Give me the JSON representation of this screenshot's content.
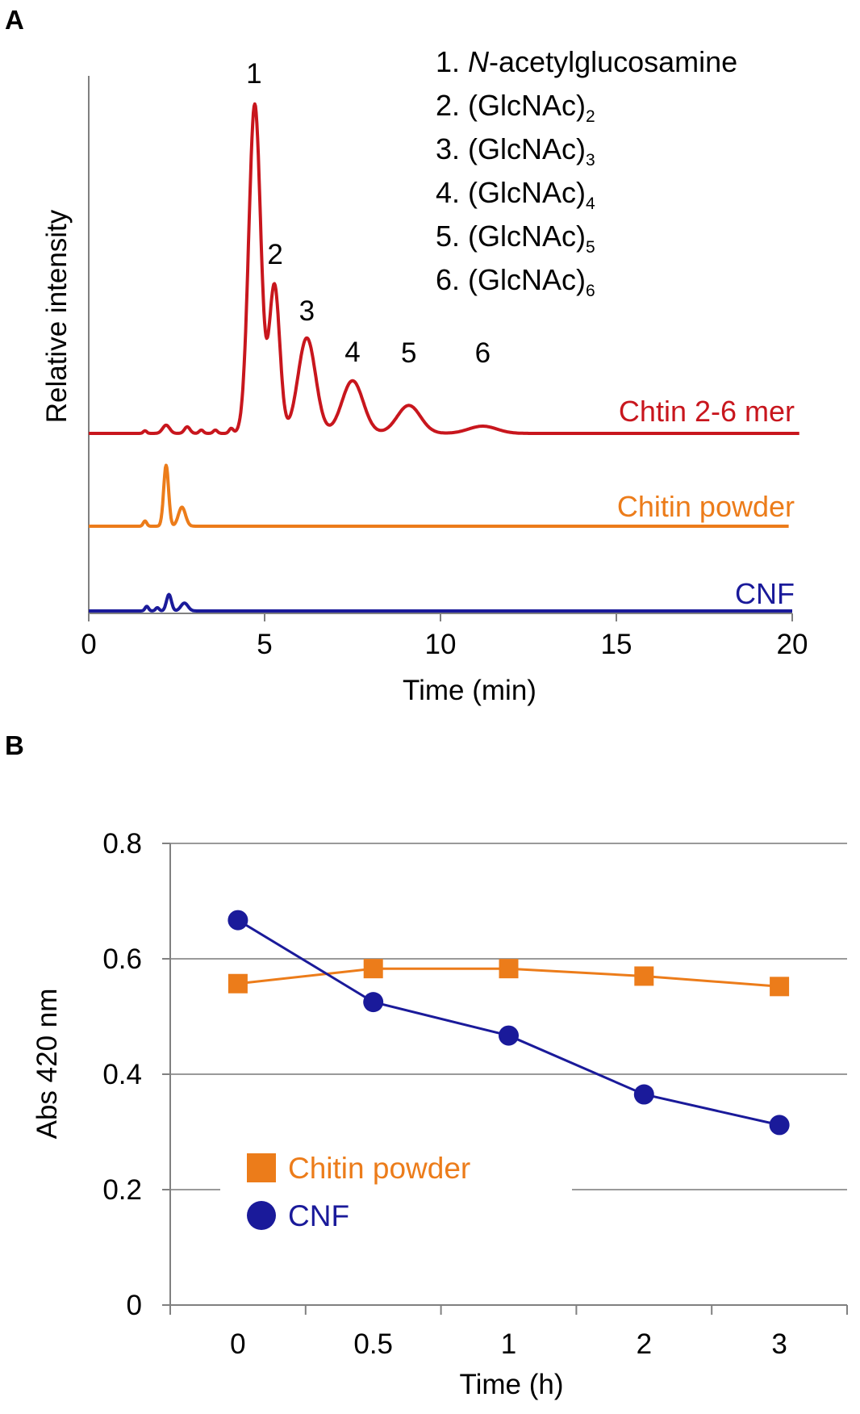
{
  "panels": {
    "a": {
      "letter": "A"
    },
    "b": {
      "letter": "B"
    }
  },
  "colors": {
    "red": "#c8161d",
    "orange": "#ec7c1a",
    "blue": "#1a1a9a",
    "axis": "#808080",
    "grid": "#9a9a9a",
    "text": "#000000"
  },
  "chart_data": [
    {
      "type": "line",
      "panel": "A",
      "title": "",
      "xlabel": "Time (min)",
      "ylabel": "Relative intensity",
      "xlim": [
        0,
        20
      ],
      "xticks": [
        "0",
        "5",
        "10",
        "15",
        "20"
      ],
      "xtick_values": [
        0,
        5,
        10,
        15,
        20
      ],
      "grid": false,
      "peak_labels": [
        {
          "label": "1",
          "x": 4.7
        },
        {
          "label": "2",
          "x": 5.3
        },
        {
          "label": "3",
          "x": 6.2
        },
        {
          "label": "4",
          "x": 7.5
        },
        {
          "label": "5",
          "x": 9.1
        },
        {
          "label": "6",
          "x": 11.2
        }
      ],
      "legend": [
        {
          "num": "1.",
          "name": "N",
          "rest": "-acetylglucosamine",
          "sub": ""
        },
        {
          "num": "2.",
          "name": "(GlcNAc)",
          "rest": "",
          "sub": "2"
        },
        {
          "num": "3.",
          "name": "(GlcNAc)",
          "rest": "",
          "sub": "3"
        },
        {
          "num": "4.",
          "name": "(GlcNAc)",
          "rest": "",
          "sub": "4"
        },
        {
          "num": "5.",
          "name": "(GlcNAc)",
          "rest": "",
          "sub": "5"
        },
        {
          "num": "6.",
          "name": "(GlcNAc)",
          "rest": "",
          "sub": "6"
        }
      ],
      "series": [
        {
          "name": "Chtin 2-6 mer",
          "color": "#c8161d",
          "x_end": 20.2,
          "peaks": [
            {
              "x": 1.6,
              "h": 0.008,
              "w": 0.05
            },
            {
              "x": 2.2,
              "h": 0.025,
              "w": 0.1
            },
            {
              "x": 2.8,
              "h": 0.02,
              "w": 0.08
            },
            {
              "x": 3.2,
              "h": 0.01,
              "w": 0.06
            },
            {
              "x": 3.6,
              "h": 0.01,
              "w": 0.06
            },
            {
              "x": 4.05,
              "h": 0.015,
              "w": 0.06
            },
            {
              "x": 4.72,
              "h": 1.0,
              "w": 0.17
            },
            {
              "x": 5.28,
              "h": 0.45,
              "w": 0.15
            },
            {
              "x": 6.2,
              "h": 0.29,
              "w": 0.25
            },
            {
              "x": 7.5,
              "h": 0.16,
              "w": 0.3
            },
            {
              "x": 9.1,
              "h": 0.085,
              "w": 0.33
            },
            {
              "x": 11.2,
              "h": 0.022,
              "w": 0.4
            }
          ]
        },
        {
          "name": "Chitin powder",
          "color": "#ec7c1a",
          "x_end": 19.9,
          "peaks": [
            {
              "x": 1.6,
              "h": 0.016,
              "w": 0.05
            },
            {
              "x": 2.2,
              "h": 0.185,
              "w": 0.07
            },
            {
              "x": 2.65,
              "h": 0.058,
              "w": 0.1
            }
          ]
        },
        {
          "name": "CNF",
          "color": "#1a1a9a",
          "x_end": 20.0,
          "peaks": [
            {
              "x": 1.65,
              "h": 0.014,
              "w": 0.05
            },
            {
              "x": 1.95,
              "h": 0.01,
              "w": 0.05
            },
            {
              "x": 2.28,
              "h": 0.05,
              "w": 0.07
            },
            {
              "x": 2.72,
              "h": 0.024,
              "w": 0.1
            }
          ]
        }
      ]
    },
    {
      "type": "line",
      "panel": "B",
      "title": "",
      "xlabel": "Time (h)",
      "ylabel": "Abs 420 nm",
      "categories": [
        "0",
        "0.5",
        "1",
        "2",
        "3"
      ],
      "ylim": [
        0,
        0.8
      ],
      "yticks": [
        "0",
        "0.2",
        "0.4",
        "0.6",
        "0.8"
      ],
      "ytick_values": [
        0,
        0.2,
        0.4,
        0.6,
        0.8
      ],
      "grid": true,
      "legend_position": "bottom-left",
      "series": [
        {
          "name": "Chitin powder",
          "marker": "square",
          "color": "#ec7c1a",
          "values": [
            0.557,
            0.583,
            0.583,
            0.57,
            0.552
          ]
        },
        {
          "name": "CNF",
          "marker": "circle",
          "color": "#1a1a9a",
          "values": [
            0.667,
            0.525,
            0.467,
            0.365,
            0.312
          ]
        }
      ]
    }
  ]
}
